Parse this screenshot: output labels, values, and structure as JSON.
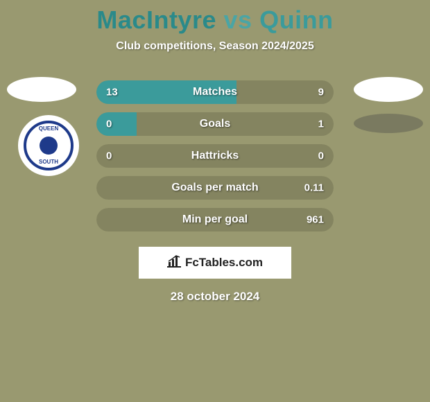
{
  "background_color": "#999970",
  "title": {
    "player1": "MacIntyre",
    "vs": "vs",
    "player2": "Quinn",
    "color_player1": "#2a8a8a",
    "color_vs": "#4aa5a5",
    "color_player2": "#3b9b9b",
    "fontsize": 36
  },
  "subtitle": "Club competitions, Season 2024/2025",
  "club_logo": {
    "top_text": "QUEEN",
    "bottom_text": "SOUTH",
    "ring_color": "#1e3a8a"
  },
  "stats": [
    {
      "label": "Matches",
      "left_value": "13",
      "right_value": "9",
      "left_num": 13,
      "right_num": 9,
      "left_pct": 59.1,
      "right_pct": 40.9,
      "left_color": "#3b9b9b",
      "right_color": "#848460",
      "bg_color": "#848460"
    },
    {
      "label": "Goals",
      "left_value": "0",
      "right_value": "1",
      "left_num": 0,
      "right_num": 1,
      "left_pct": 17,
      "right_pct": 83,
      "left_color": "#3b9b9b",
      "right_color": "#848460",
      "bg_color": "#848460"
    },
    {
      "label": "Hattricks",
      "left_value": "0",
      "right_value": "0",
      "left_num": 0,
      "right_num": 0,
      "left_pct": 0,
      "right_pct": 0,
      "left_color": "#3b9b9b",
      "right_color": "#848460",
      "bg_color": "#848460"
    },
    {
      "label": "Goals per match",
      "left_value": "",
      "right_value": "0.11",
      "left_num": 0,
      "right_num": 0.11,
      "left_pct": 0,
      "right_pct": 0,
      "left_color": "#3b9b9b",
      "right_color": "#848460",
      "bg_color": "#848460"
    },
    {
      "label": "Min per goal",
      "left_value": "",
      "right_value": "961",
      "left_num": 0,
      "right_num": 961,
      "left_pct": 0,
      "right_pct": 0,
      "left_color": "#3b9b9b",
      "right_color": "#848460",
      "bg_color": "#848460"
    }
  ],
  "bar_style": {
    "height": 34,
    "border_radius": 17,
    "gap": 12,
    "label_fontsize": 16,
    "value_fontsize": 15,
    "text_color": "#ffffff"
  },
  "footer": {
    "site": "FcTables.com",
    "date": "28 october 2024",
    "badge_bg": "#ffffff",
    "badge_text_color": "#222222"
  }
}
